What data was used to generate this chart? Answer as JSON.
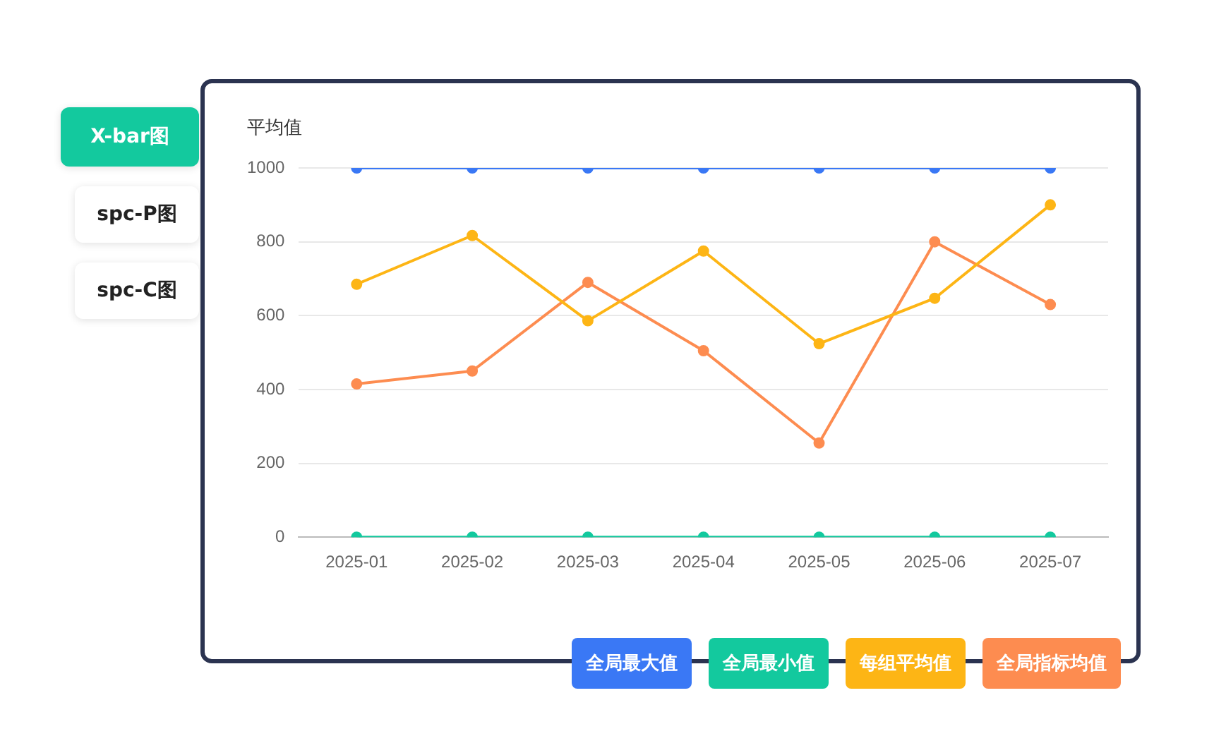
{
  "chart_data": {
    "type": "line",
    "ylabel": "平均值",
    "categories": [
      "2025-01",
      "2025-02",
      "2025-03",
      "2025-04",
      "2025-05",
      "2025-06",
      "2025-07"
    ],
    "series": [
      {
        "name": "全局最大值",
        "color": "#3a78f5",
        "values": [
          1000,
          1000,
          1000,
          1000,
          1000,
          1000,
          1000
        ]
      },
      {
        "name": "全局最小值",
        "color": "#13c99e",
        "values": [
          0,
          0,
          0,
          0,
          0,
          0,
          0
        ]
      },
      {
        "name": "每组平均值",
        "color": "#fdb515",
        "values": [
          685,
          817,
          586,
          775,
          524,
          647,
          900
        ]
      },
      {
        "name": "全局指标均值",
        "color": "#fd8c50",
        "values": [
          415,
          450,
          690,
          505,
          255,
          800,
          630
        ]
      }
    ],
    "ylim": [
      0,
      1000
    ],
    "yticks": [
      0,
      200,
      400,
      600,
      800,
      1000
    ],
    "grid": "y",
    "legend": "bottom right",
    "marker": "circle",
    "line_style": "solid",
    "annotations": [
      "X-bar图",
      "spc-P图",
      "spc-C图"
    ]
  }
}
